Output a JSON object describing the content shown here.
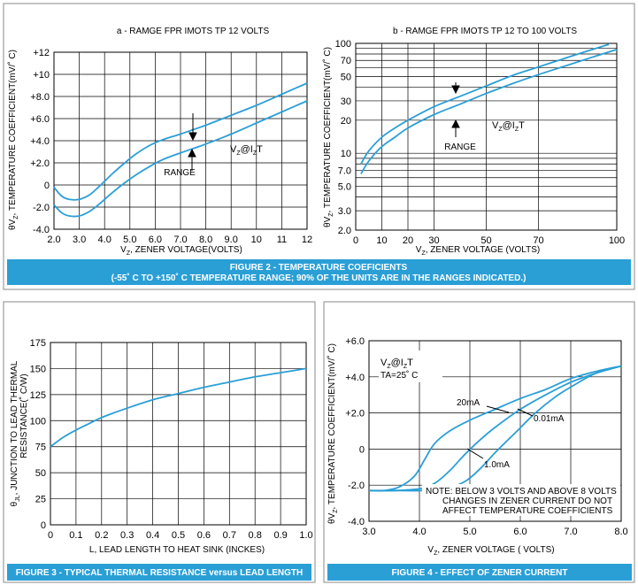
{
  "colors": {
    "curve": "#2a9fd6",
    "caption_bg": "#2a9fd6",
    "caption_text": "#ffffff"
  },
  "fig2": {
    "caption_line1": "FIGURE 2 - TEMPERATURE COEFICIENTS",
    "caption_line2": "(-55˚ C TO +150˚ C TEMPERATURE RANGE; 90% OF THE UNITS ARE IN THE RANGES INDICATED.)"
  },
  "chart_data": [
    {
      "id": "fig2a",
      "type": "line",
      "title": "a - RAMGE FPR IMOTS TP 12 VOLTS",
      "ylabel_prefix": "θV",
      "ylabel_sub": "Z",
      "ylabel_rest": ", TEMPERATURE COEFFICIENT(mV/˚ C)",
      "xlabel_prefix": "V",
      "xlabel_sub": "Z",
      "xlabel_rest": ", ZENER VOLTAGE(VOLTS)",
      "xlim": [
        2,
        12
      ],
      "ylim": [
        -4,
        12
      ],
      "x_ticks": [
        2,
        3,
        4,
        5,
        6,
        7,
        8,
        9,
        10,
        11,
        12
      ],
      "x_tick_labels": [
        "2.0",
        "3.0",
        "4.0",
        "5.0",
        "6.0",
        "7.0",
        "8.0",
        "9.0",
        "10",
        "11",
        "12"
      ],
      "y_ticks": [
        -4,
        -2,
        0,
        2,
        4,
        6,
        8,
        10,
        12
      ],
      "y_tick_labels": [
        "-4.0",
        "-2.0",
        "0",
        "+2.0",
        "+4.0",
        "+6.0",
        "+8.0",
        "+10",
        "+12"
      ],
      "annotation_range": "RANGE",
      "annotation_vz_main": "V",
      "annotation_vz_sub1": "Z",
      "annotation_vz_mid": "@I",
      "annotation_vz_sub2": "Z",
      "annotation_vz_end": "T",
      "series": [
        {
          "name": "upper",
          "x": [
            2.0,
            2.3,
            2.6,
            3.0,
            3.4,
            3.8,
            4.3,
            4.8,
            5.3,
            5.8,
            6.3,
            7.0,
            7.5,
            8.0,
            9.0,
            10.0,
            11.0,
            12.0
          ],
          "y": [
            -0.2,
            -1.0,
            -1.3,
            -1.3,
            -0.9,
            -0.1,
            1.0,
            2.0,
            2.9,
            3.6,
            4.1,
            4.6,
            5.0,
            5.4,
            6.3,
            7.2,
            8.2,
            9.2
          ]
        },
        {
          "name": "lower",
          "x": [
            2.0,
            2.3,
            2.6,
            3.0,
            3.4,
            3.8,
            4.3,
            4.8,
            5.3,
            5.8,
            6.3,
            7.0,
            7.5,
            8.0,
            9.0,
            10.0,
            11.0,
            12.0
          ],
          "y": [
            -1.8,
            -2.5,
            -2.8,
            -2.8,
            -2.4,
            -1.7,
            -0.7,
            0.2,
            1.0,
            1.7,
            2.3,
            2.9,
            3.3,
            3.7,
            4.6,
            5.6,
            6.6,
            7.6
          ]
        }
      ]
    },
    {
      "id": "fig2b",
      "type": "line",
      "scale": "log",
      "title": "b - RAMGE FPR IMOTS TP 12 TO 100 VOLTS",
      "ylabel_prefix": "θV",
      "ylabel_sub": "Z",
      "ylabel_rest": ", TEMPERATURE COEFFICIENT(mV/˚ C)",
      "xlabel_prefix": "V",
      "xlabel_sub": "Z",
      "xlabel_rest": ", ZENER VOLTAGE (VOLTS)",
      "xlim": [
        0,
        100
      ],
      "ylim": [
        2,
        100
      ],
      "x_ticks": [
        0,
        10,
        20,
        30,
        50,
        70,
        100
      ],
      "x_tick_labels": [
        "0",
        "10",
        "20",
        "30",
        "50",
        "70",
        "100"
      ],
      "y_ticks": [
        2,
        3,
        5,
        7,
        10,
        20,
        30,
        50,
        70,
        100
      ],
      "y_tick_labels": [
        "2.0",
        "3.0",
        "5.0",
        "7.0",
        "10",
        "20",
        "30",
        "50",
        "70",
        "100"
      ],
      "y_grid": [
        2,
        3,
        4,
        5,
        6,
        7,
        8,
        9,
        10,
        20,
        30,
        40,
        50,
        60,
        70,
        80,
        90,
        100
      ],
      "annotation_range": "RANGE",
      "annotation_vz_main": "V",
      "annotation_vz_sub1": "Z",
      "annotation_vz_mid": "@I",
      "annotation_vz_sub2": "Z",
      "annotation_vz_end": "T",
      "series": [
        {
          "name": "upper",
          "x": [
            2,
            5,
            10,
            15,
            20,
            30,
            40,
            50,
            60,
            70,
            80,
            90,
            97
          ],
          "y": [
            8.0,
            10.5,
            14.0,
            17.0,
            20.0,
            26.5,
            33.0,
            41.0,
            51.0,
            61.0,
            73.0,
            87.0,
            98.0
          ]
        },
        {
          "name": "lower",
          "x": [
            2,
            5,
            10,
            15,
            20,
            30,
            40,
            50,
            60,
            70,
            80,
            90,
            100
          ],
          "y": [
            6.5,
            8.5,
            11.5,
            14.0,
            17.0,
            22.5,
            28.0,
            35.0,
            43.0,
            52.0,
            62.0,
            74.0,
            88.0
          ]
        }
      ]
    },
    {
      "id": "fig3",
      "type": "line",
      "title": "",
      "caption": "FIGURE 3 - TYPICAL THERMAL RESISTANCE versus LEAD LENGTH",
      "ylabel_line1_prefix": "θ",
      "ylabel_line1_sub": "JL",
      "ylabel_line1_rest": ", JUNCTION TO LEAD THERMAL",
      "ylabel_line2": "RESISTANCE(˚ C/W)",
      "xlabel": "L, LEAD LENGTH TO HEAT SINK (INCKES)",
      "xlim": [
        0,
        1.0
      ],
      "ylim": [
        0,
        175
      ],
      "x_ticks": [
        0,
        0.1,
        0.2,
        0.3,
        0.4,
        0.5,
        0.6,
        0.7,
        0.8,
        0.9,
        1.0
      ],
      "x_tick_labels": [
        "0",
        "0.1",
        "0.2",
        "0.3",
        "0.4",
        "0.5",
        "0.6",
        "0.7",
        "0.8",
        "0.9",
        "1.0"
      ],
      "y_ticks": [
        0,
        25,
        50,
        75,
        100,
        125,
        150,
        175
      ],
      "y_tick_labels": [
        "0",
        "25",
        "50",
        "75",
        "100",
        "125",
        "150",
        "175"
      ],
      "series": [
        {
          "name": "thermal resistance",
          "x": [
            0,
            0.05,
            0.1,
            0.15,
            0.2,
            0.3,
            0.4,
            0.5,
            0.6,
            0.7,
            0.8,
            0.9,
            1.0
          ],
          "y": [
            75,
            84,
            91,
            97,
            103,
            112,
            120,
            126,
            132,
            137,
            142,
            146,
            150
          ]
        }
      ]
    },
    {
      "id": "fig4",
      "type": "line",
      "title": "",
      "caption": "FIGURE 4 - EFFECT OF ZENER CURRENT",
      "ylabel_prefix": "θV",
      "ylabel_sub": "Z",
      "ylabel_rest": ", TEMPERATURE COEFFICIENT(mV/˚ C)",
      "xlabel_prefix": "V",
      "xlabel_sub": "Z",
      "xlabel_rest": ", ZENER VOLTAGE ( VOLTS)",
      "xlim": [
        3.0,
        8.0
      ],
      "ylim": [
        -4,
        6
      ],
      "x_ticks": [
        3,
        4,
        5,
        6,
        7,
        8
      ],
      "x_tick_labels": [
        "3.0",
        "4.0",
        "5.0",
        "6.0",
        "7.0",
        "8.0"
      ],
      "y_ticks": [
        -4,
        -2,
        0,
        2,
        4,
        6
      ],
      "y_tick_labels": [
        "-4.0",
        "-2.0",
        "0",
        "+2.0",
        "+4.0",
        "+6.0"
      ],
      "legend_vz_main": "V",
      "legend_vz_sub1": "Z",
      "legend_vz_mid": "@I",
      "legend_vz_sub2": "Z",
      "legend_vz_end": "T",
      "legend_ta": "TA=25˚ C",
      "note_line1": "NOTE: BELOW 3 VOLTS AND ABOVE 8 VOLTS",
      "note_line2": "CHANGES IN ZENER CURRENT DO NOT",
      "note_line3": "AFFECT TEMPERATURE COEFFICIENTS",
      "series": [
        {
          "name": "20mA",
          "x": [
            3.0,
            3.3,
            3.6,
            3.9,
            4.1,
            4.3,
            4.6,
            5.0,
            5.5,
            6.0,
            6.5,
            7.0,
            7.5,
            8.0
          ],
          "y": [
            -2.3,
            -2.3,
            -2.1,
            -1.5,
            -0.6,
            0.3,
            1.0,
            1.6,
            2.2,
            2.8,
            3.3,
            3.9,
            4.3,
            4.6
          ]
        },
        {
          "name": "1.0mA",
          "x": [
            3.0,
            3.5,
            4.0,
            4.3,
            4.6,
            4.9,
            5.2,
            5.5,
            6.0,
            6.5,
            7.0,
            7.5,
            8.0
          ],
          "y": [
            -2.3,
            -2.3,
            -2.2,
            -1.9,
            -1.2,
            -0.3,
            0.5,
            1.2,
            2.2,
            3.0,
            3.7,
            4.2,
            4.6
          ]
        },
        {
          "name": "0.01mA",
          "x": [
            3.0,
            3.5,
            4.0,
            4.5,
            4.9,
            5.2,
            5.5,
            5.9,
            6.3,
            6.7,
            7.1,
            7.5,
            8.0
          ],
          "y": [
            -2.3,
            -2.3,
            -2.3,
            -2.2,
            -1.8,
            -1.1,
            -0.2,
            0.9,
            2.0,
            2.9,
            3.6,
            4.2,
            4.6
          ]
        }
      ],
      "label_20mA": "20mA",
      "label_1mA": "1.0mA",
      "label_001mA": "0.01mA"
    }
  ]
}
